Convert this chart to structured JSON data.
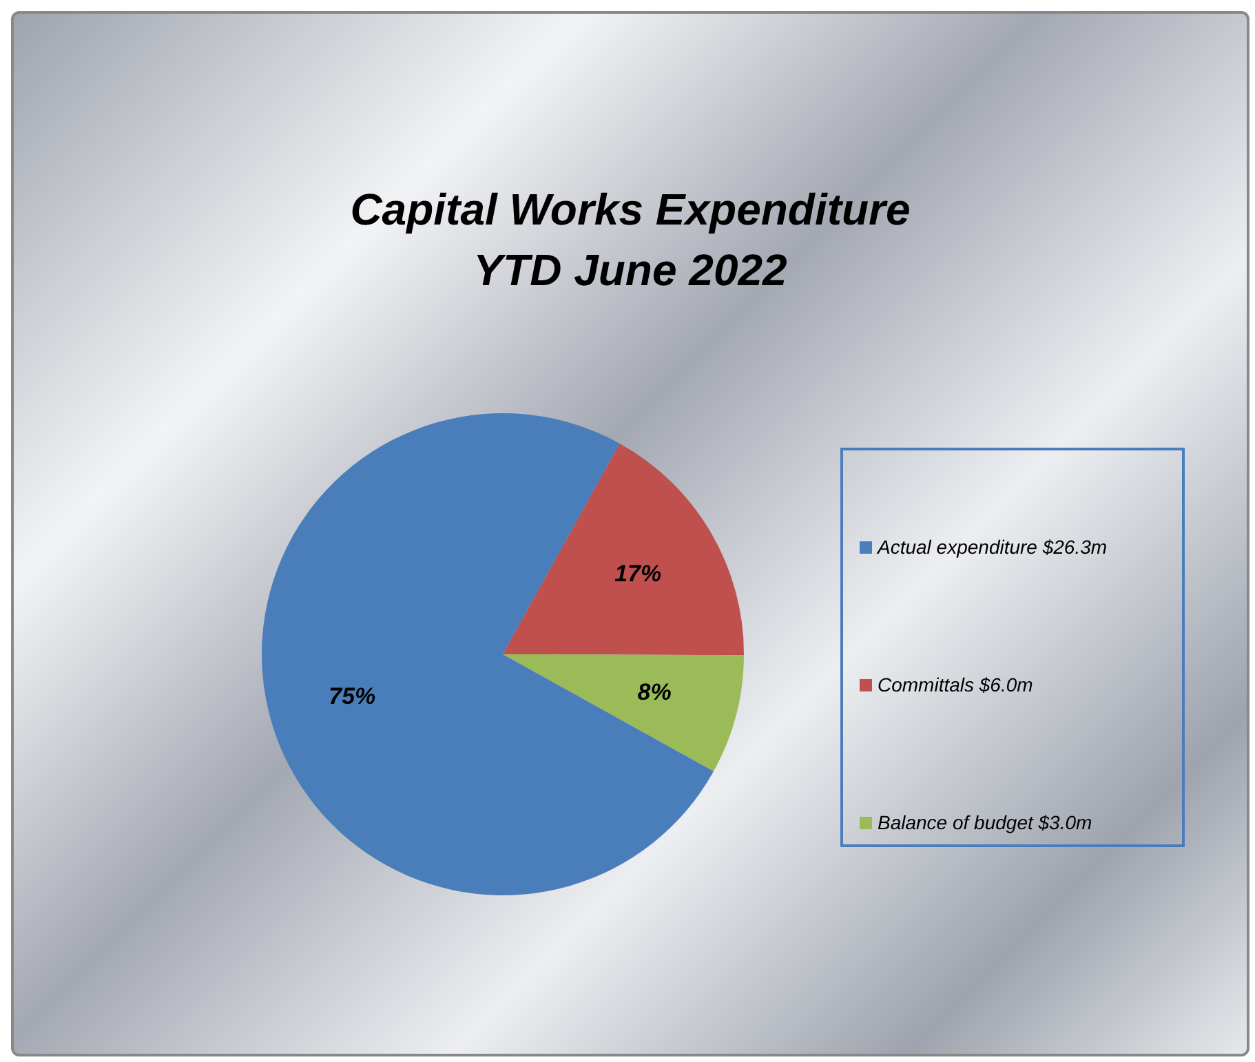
{
  "chart_data": {
    "type": "pie",
    "title": "Capital Works Expenditure",
    "subtitle": "YTD June 2022",
    "categories": [
      "Actual expenditure $26.3m",
      "Committals $6.0m",
      "Balance of budget $3.0m"
    ],
    "values": [
      75,
      17,
      8
    ],
    "colors": [
      "#4a7ebb",
      "#c0504d",
      "#9bbb59"
    ],
    "value_labels": [
      "75%",
      "17%",
      "8%"
    ],
    "legend": "right"
  }
}
